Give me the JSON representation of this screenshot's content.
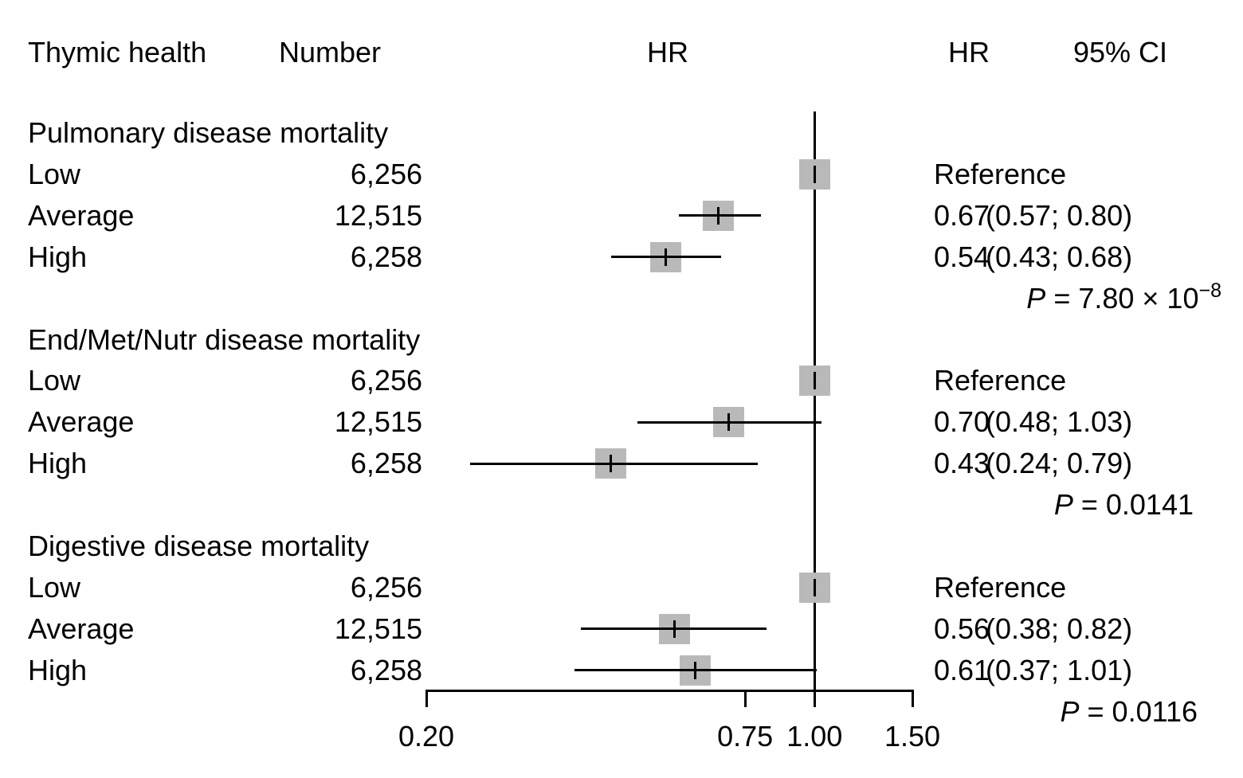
{
  "columns": {
    "thymic_health": "Thymic health",
    "number": "Number",
    "hr_plot": "HR",
    "hr_value": "HR",
    "ci": "95% CI"
  },
  "chart_data": {
    "type": "scatter",
    "variant": "forest-plot",
    "title": "",
    "x_scale": "log",
    "x_range": [
      0.2,
      1.5
    ],
    "x_ticks": [
      0.2,
      0.75,
      1.0,
      1.5
    ],
    "x_tick_labels": [
      "0.20",
      "0.75",
      "1.00",
      "1.50"
    ],
    "reference_line_x": 1.0,
    "marker_color": "#b9b9b9",
    "line_color": "#000000",
    "reference_label": "Reference",
    "groups": [
      {
        "title": "Pulmonary disease mortality",
        "rows": [
          {
            "label": "Low",
            "number": "6,256",
            "hr": 1.0,
            "ci_low": null,
            "ci_high": null,
            "hr_text": "",
            "ci_text": "Reference",
            "is_reference": true
          },
          {
            "label": "Average",
            "number": "12,515",
            "hr": 0.67,
            "ci_low": 0.57,
            "ci_high": 0.8,
            "hr_text": "0.67",
            "ci_text": "(0.57; 0.80)",
            "is_reference": false
          },
          {
            "label": "High",
            "number": "6,258",
            "hr": 0.54,
            "ci_low": 0.43,
            "ci_high": 0.68,
            "hr_text": "0.54",
            "ci_text": "(0.43; 0.68)",
            "is_reference": false
          }
        ],
        "p_value": {
          "var": "P",
          "rest": " = 7.80 × 10",
          "sup": "−8"
        }
      },
      {
        "title": "End/Met/Nutr disease mortality",
        "rows": [
          {
            "label": "Low",
            "number": "6,256",
            "hr": 1.0,
            "ci_low": null,
            "ci_high": null,
            "hr_text": "",
            "ci_text": "Reference",
            "is_reference": true
          },
          {
            "label": "Average",
            "number": "12,515",
            "hr": 0.7,
            "ci_low": 0.48,
            "ci_high": 1.03,
            "hr_text": "0.70",
            "ci_text": "(0.48; 1.03)",
            "is_reference": false
          },
          {
            "label": "High",
            "number": "6,258",
            "hr": 0.43,
            "ci_low": 0.24,
            "ci_high": 0.79,
            "hr_text": "0.43",
            "ci_text": "(0.24; 0.79)",
            "is_reference": false
          }
        ],
        "p_value": {
          "var": "P",
          "rest": " = 0.0141",
          "sup": ""
        }
      },
      {
        "title": "Digestive disease mortality",
        "rows": [
          {
            "label": "Low",
            "number": "6,256",
            "hr": 1.0,
            "ci_low": null,
            "ci_high": null,
            "hr_text": "",
            "ci_text": "Reference",
            "is_reference": true
          },
          {
            "label": "Average",
            "number": "12,515",
            "hr": 0.56,
            "ci_low": 0.38,
            "ci_high": 0.82,
            "hr_text": "0.56",
            "ci_text": "(0.38; 0.82)",
            "is_reference": false
          },
          {
            "label": "High",
            "number": "6,258",
            "hr": 0.61,
            "ci_low": 0.37,
            "ci_high": 1.01,
            "hr_text": "0.61",
            "ci_text": "(0.37; 1.01)",
            "is_reference": false
          }
        ],
        "p_value": {
          "var": "P",
          "rest": " = 0.0116",
          "sup": ""
        }
      }
    ]
  }
}
